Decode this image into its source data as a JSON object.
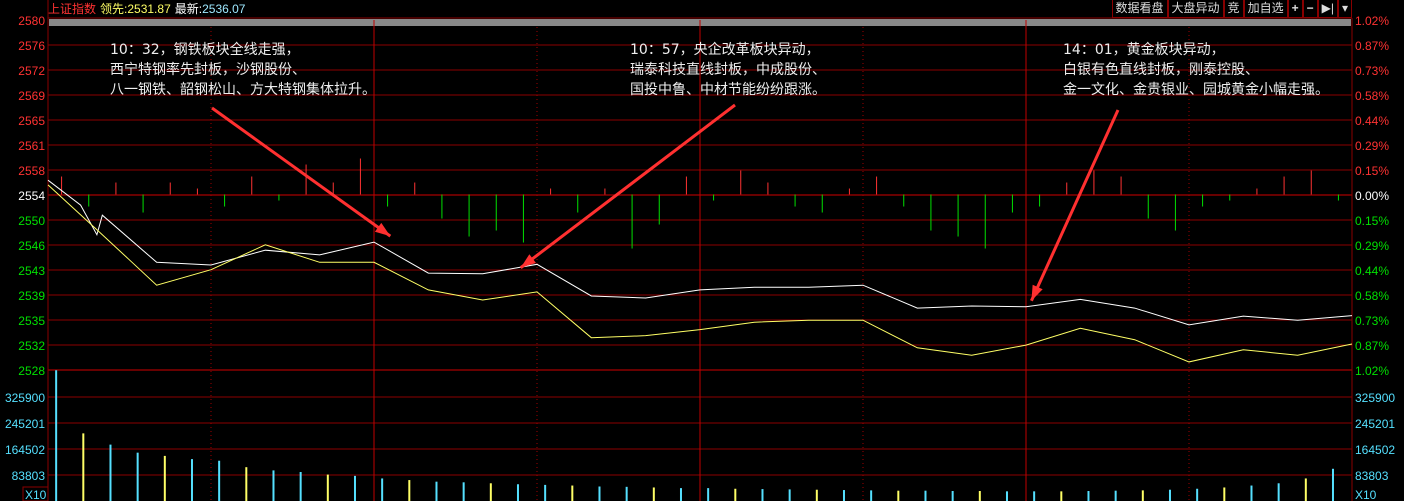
{
  "header": {
    "index_name": "上证指数",
    "lead_label": "领先:",
    "lead_value": "2531.87",
    "latest_label": "最新:",
    "latest_value": "2536.07"
  },
  "toolbar": [
    {
      "label": "数据看盘"
    },
    {
      "label": "大盘异动"
    },
    {
      "label": "竞"
    },
    {
      "label": "加自选"
    },
    {
      "label": "+",
      "icon": "plus-icon"
    },
    {
      "label": "−",
      "icon": "minus-icon"
    },
    {
      "label": "▶|",
      "icon": "skip-end-icon"
    },
    {
      "label": "▾",
      "icon": "dropdown-icon"
    }
  ],
  "annotations": [
    {
      "lines": [
        "10：32，钢铁板块全线走强，",
        "西宁特钢率先封板，沙钢股份、",
        "八一钢铁、韶钢松山、方大特钢集体拉升。"
      ],
      "arrow_to_minute": 63
    },
    {
      "lines": [
        "10：57，央企改革板块异动，",
        "瑞泰科技直线封板，中成股份、",
        "国投中鲁、中材节能纷纷跟涨。"
      ],
      "arrow_to_minute": 87
    },
    {
      "lines": [
        "14：01，黄金板块异动，",
        "白银有色直线封板，刚泰控股、",
        "金一文化、金贵银业、园城黄金小幅走强。"
      ],
      "arrow_to_minute": 181
    }
  ],
  "chart_data": {
    "type": "line",
    "prev_close": 2554.07,
    "ylim": [
      2528,
      2580
    ],
    "price_ticks": [
      "2580",
      "2576",
      "2572",
      "2569",
      "2565",
      "2561",
      "2558",
      "2554",
      "2550",
      "2546",
      "2543",
      "2539",
      "2535",
      "2532",
      "2528"
    ],
    "pct_ticks": [
      "1.02%",
      "0.87%",
      "0.73%",
      "0.58%",
      "0.44%",
      "0.29%",
      "0.15%",
      "0.00%",
      "0.15%",
      "0.29%",
      "0.44%",
      "0.58%",
      "0.73%",
      "0.87%",
      "1.02%"
    ],
    "volume_ticks": [
      "325900",
      "245201",
      "164502",
      "83803"
    ],
    "volume_unit": "X10",
    "xlim": [
      0,
      240
    ],
    "colors": {
      "up": "#ff3232",
      "down": "#00e000",
      "flat": "#ffffff",
      "grid": "#8b0000",
      "price": "#ffffff",
      "lead": "#ffff66",
      "volume": "#55e0ff"
    },
    "series": [
      {
        "key": "latest",
        "points": [
          [
            0,
            2556.2
          ],
          [
            6,
            2552.5
          ],
          [
            9,
            2548.1
          ],
          [
            10,
            2551.0
          ],
          [
            20,
            2544.0
          ],
          [
            30,
            2543.6
          ],
          [
            40,
            2545.8
          ],
          [
            50,
            2545.1
          ],
          [
            60,
            2547.0
          ],
          [
            70,
            2542.4
          ],
          [
            80,
            2542.3
          ],
          [
            90,
            2543.7
          ],
          [
            100,
            2539.0
          ],
          [
            110,
            2538.7
          ],
          [
            120,
            2539.9
          ],
          [
            130,
            2540.3
          ],
          [
            140,
            2540.3
          ],
          [
            150,
            2540.6
          ],
          [
            160,
            2537.2
          ],
          [
            170,
            2537.5
          ],
          [
            180,
            2537.4
          ],
          [
            190,
            2538.5
          ],
          [
            200,
            2537.2
          ],
          [
            210,
            2534.7
          ],
          [
            220,
            2536.0
          ],
          [
            230,
            2535.4
          ],
          [
            240,
            2536.07
          ]
        ]
      },
      {
        "key": "lead",
        "points": [
          [
            0,
            2555.5
          ],
          [
            10,
            2548.1
          ],
          [
            20,
            2540.6
          ],
          [
            30,
            2542.9
          ],
          [
            40,
            2546.6
          ],
          [
            50,
            2544.0
          ],
          [
            60,
            2544.0
          ],
          [
            70,
            2539.9
          ],
          [
            80,
            2538.4
          ],
          [
            90,
            2539.6
          ],
          [
            100,
            2532.8
          ],
          [
            110,
            2533.1
          ],
          [
            120,
            2534.0
          ],
          [
            130,
            2535.1
          ],
          [
            140,
            2535.4
          ],
          [
            150,
            2535.4
          ],
          [
            160,
            2531.3
          ],
          [
            170,
            2530.2
          ],
          [
            180,
            2531.7
          ],
          [
            190,
            2534.2
          ],
          [
            200,
            2532.5
          ],
          [
            210,
            2529.2
          ],
          [
            220,
            2531.0
          ],
          [
            230,
            2530.2
          ],
          [
            240,
            2531.87
          ]
        ]
      }
    ],
    "strength": [
      3,
      -2,
      2,
      -3,
      2,
      1,
      -2,
      3,
      -1,
      5,
      2,
      6,
      -2,
      2,
      -4,
      -7,
      -6,
      -8,
      1,
      -3,
      1,
      -9,
      -5,
      3,
      -1,
      4,
      2,
      -2,
      -3,
      1,
      3,
      -2,
      -6,
      -7,
      -9,
      -3,
      -2,
      2,
      4,
      3,
      -4,
      -6,
      -2,
      -1,
      1,
      3,
      4,
      -1
    ],
    "volume": [
      406000,
      210000,
      175000,
      150000,
      140000,
      130000,
      125000,
      105000,
      95000,
      90000,
      82000,
      78000,
      70000,
      65000,
      60000,
      58000,
      55000,
      52000,
      50000,
      48000,
      45000,
      44000,
      42000,
      40000,
      40000,
      38000,
      37000,
      36000,
      35000,
      34000,
      33000,
      32000,
      32000,
      31000,
      31000,
      30000,
      30000,
      30000,
      31000,
      32000,
      33000,
      35000,
      38000,
      42000,
      48000,
      55000,
      70000,
      100000
    ]
  }
}
